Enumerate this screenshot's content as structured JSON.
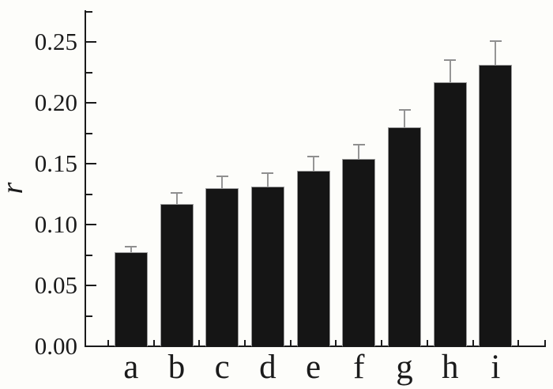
{
  "figure": {
    "background_color": "#fdfdfa",
    "axis_color": "#1b1b1b",
    "bar_color": "#151515",
    "bar_edge_color": "#9a9a9a",
    "error_bar_color": "#969696"
  },
  "chart_data": {
    "type": "bar",
    "title": "",
    "xlabel": "",
    "ylabel": "r",
    "categories": [
      "a",
      "b",
      "c",
      "d",
      "e",
      "f",
      "g",
      "h",
      "i"
    ],
    "values": [
      0.077,
      0.117,
      0.13,
      0.131,
      0.144,
      0.154,
      0.18,
      0.217,
      0.231
    ],
    "errors_plus": [
      0.005,
      0.009,
      0.01,
      0.011,
      0.012,
      0.012,
      0.014,
      0.018,
      0.02
    ],
    "ylim": [
      0,
      0.2755
    ],
    "ytick_step": 0.05,
    "ytick_minor_step": 0.025,
    "ytick_labels": [
      "0.00",
      "0.05",
      "0.10",
      "0.15",
      "0.20",
      "0.25"
    ],
    "grid": false,
    "legend": null,
    "error_bar_direction": "plus-only"
  }
}
